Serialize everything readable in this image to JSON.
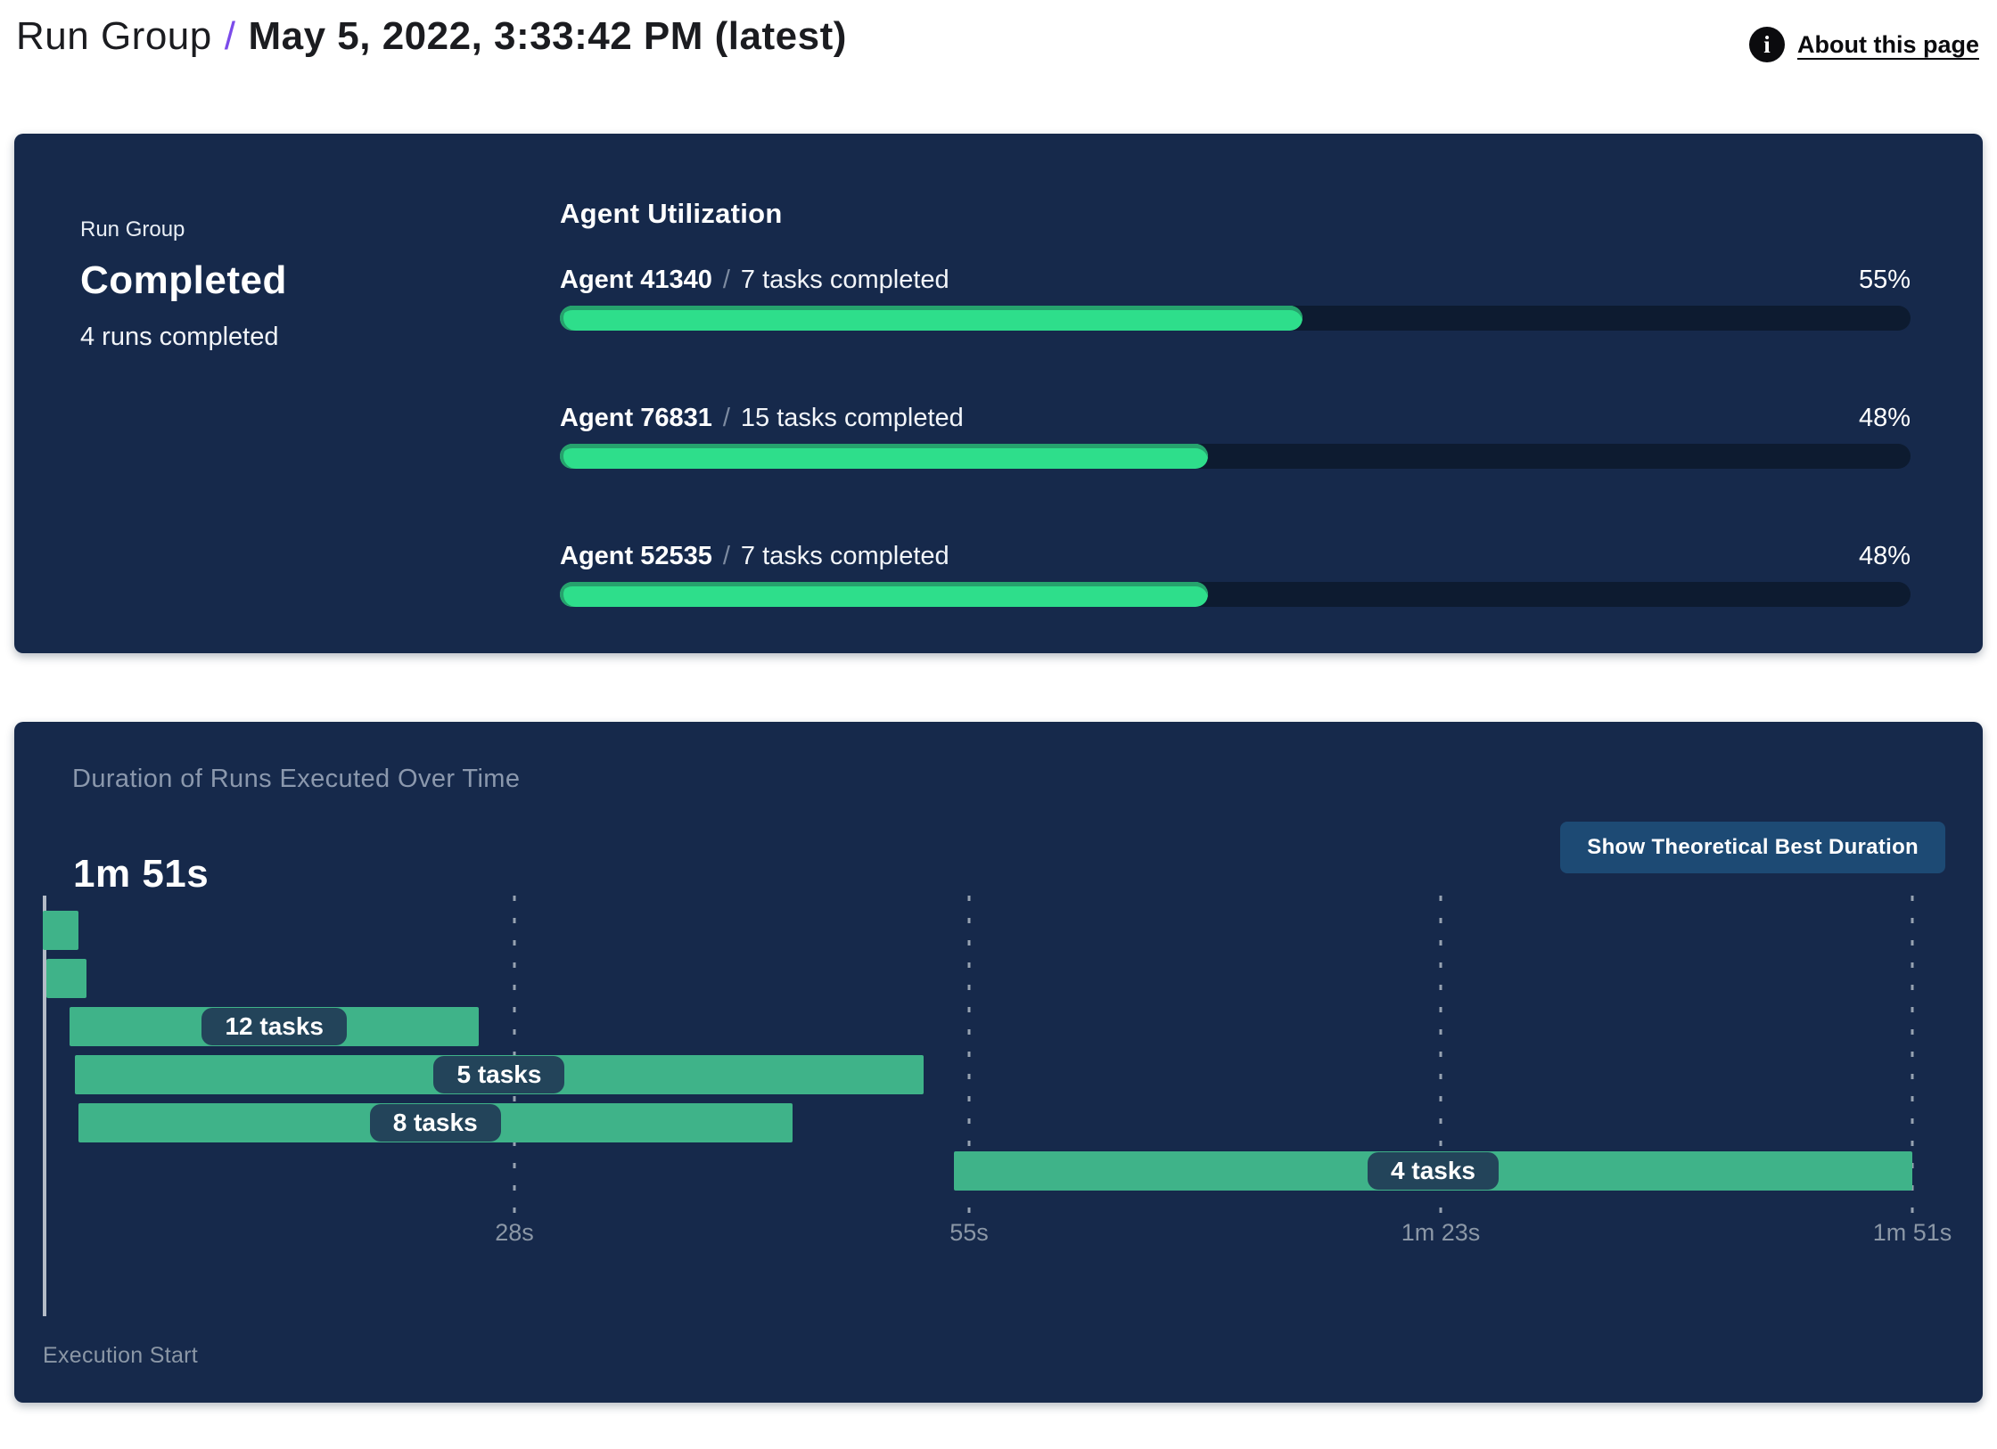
{
  "header": {
    "breadcrumb": "Run Group",
    "separator": "/",
    "title": "May 5, 2022, 3:33:42 PM (latest)",
    "about": {
      "label": "About this page",
      "icon": "info-icon"
    }
  },
  "colors": {
    "panel_bg": "#16294B",
    "track_bg": "#0D1B30",
    "progress_fill": "#2EDE8B",
    "progress_fill_edge": "#26A26D",
    "gantt_bar": "#3FB389",
    "pill_bg": "#23445A",
    "button_bg": "#1D4A74",
    "accent_purple": "#7B4BEA",
    "muted_text": "#8B97A8"
  },
  "run_group_panel": {
    "label": "Run Group",
    "status": "Completed",
    "detail": "4 runs completed",
    "utilization": {
      "heading": "Agent Utilization",
      "agents": [
        {
          "name": "Agent 41340",
          "separator": "/",
          "tasks": "7 tasks completed",
          "percent": 55,
          "percent_label": "55%"
        },
        {
          "name": "Agent 76831",
          "separator": "/",
          "tasks": "15 tasks completed",
          "percent": 48,
          "percent_label": "48%"
        },
        {
          "name": "Agent 52535",
          "separator": "/",
          "tasks": "7 tasks completed",
          "percent": 48,
          "percent_label": "48%"
        }
      ]
    }
  },
  "duration_panel": {
    "title": "Duration of Runs Executed Over Time",
    "total_duration": "1m 51s",
    "button_label": "Show Theoretical Best Duration",
    "execution_start_label": "Execution Start"
  },
  "chart_data": {
    "type": "gantt",
    "title": "Duration of Runs Executed Over Time",
    "total_label": "1m 51s",
    "x_axis": {
      "unit": "seconds",
      "min": 0,
      "max": 111,
      "start_label": "Execution Start",
      "grid": "dashed-vertical"
    },
    "ticks": [
      {
        "seconds": 28,
        "label": "28s"
      },
      {
        "seconds": 55,
        "label": "55s"
      },
      {
        "seconds": 83,
        "label": "1m 23s"
      },
      {
        "seconds": 111,
        "label": "1m 51s"
      }
    ],
    "runs": [
      {
        "start_s": 0.0,
        "end_s": 2.1,
        "label": ""
      },
      {
        "start_s": 0.2,
        "end_s": 2.6,
        "label": ""
      },
      {
        "start_s": 1.6,
        "end_s": 25.9,
        "label": "12 tasks"
      },
      {
        "start_s": 1.9,
        "end_s": 52.3,
        "label": "5 tasks"
      },
      {
        "start_s": 2.1,
        "end_s": 44.5,
        "label": "8 tasks"
      },
      {
        "start_s": 54.1,
        "end_s": 111.0,
        "label": "4 tasks"
      }
    ]
  }
}
